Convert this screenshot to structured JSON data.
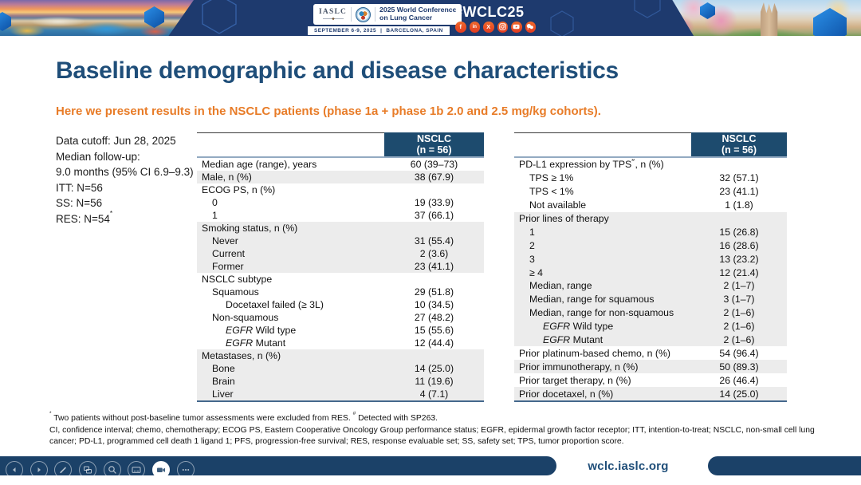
{
  "banner": {
    "logo": {
      "iaslc": "IASLC",
      "conference_line1": "2025 World Conference",
      "conference_line2": "on Lung Cancer",
      "dates": "SEPTEMBER 6-9, 2025",
      "separator": "|",
      "location": "BARCELONA, SPAIN"
    },
    "hashtag": "#WCLC25",
    "social_glyphs": {
      "facebook": "f",
      "linkedin": "in",
      "x": "X"
    },
    "social_icons": [
      "facebook",
      "linkedin",
      "x",
      "instagram",
      "youtube",
      "chat"
    ]
  },
  "slide": {
    "title": "Baseline demographic and disease characteristics",
    "subtitle": "Here we present results in the NSCLC patients (phase 1a + phase 1b 2.0 and 2.5 mg/kg cohorts).",
    "info_lines": [
      {
        "parts": [
          {
            "t": "Data cutoff: Jun 28, 2025"
          }
        ]
      },
      {
        "parts": [
          {
            "t": "Median follow-up:"
          }
        ]
      },
      {
        "parts": [
          {
            "t": "9.0 months (95% CI 6.9–9.3)"
          }
        ]
      },
      {
        "parts": [
          {
            "t": "ITT: N=56"
          }
        ]
      },
      {
        "parts": [
          {
            "t": "SS: N=56"
          }
        ]
      },
      {
        "parts": [
          {
            "t": "RES: N=54"
          },
          {
            "sup": "*"
          }
        ]
      }
    ]
  },
  "tables": {
    "left": {
      "header_line1": "NSCLC",
      "header_line2": "(n = 56)",
      "rows": [
        {
          "parts": [
            {
              "t": "Median age (range), years"
            }
          ],
          "value": "60 (39–73)",
          "indent": 0,
          "shaded": false
        },
        {
          "parts": [
            {
              "t": "Male, n (%)"
            }
          ],
          "value": "38 (67.9)",
          "indent": 0,
          "shaded": true
        },
        {
          "parts": [
            {
              "t": "ECOG PS, n (%)"
            }
          ],
          "value": "",
          "indent": 0,
          "shaded": false
        },
        {
          "parts": [
            {
              "t": "0"
            }
          ],
          "value": "19 (33.9)",
          "indent": 1,
          "shaded": false
        },
        {
          "parts": [
            {
              "t": "1"
            }
          ],
          "value": "37 (66.1)",
          "indent": 1,
          "shaded": false
        },
        {
          "parts": [
            {
              "t": "Smoking status, n (%)"
            }
          ],
          "value": "",
          "indent": 0,
          "shaded": true
        },
        {
          "parts": [
            {
              "t": "Never"
            }
          ],
          "value": "31 (55.4)",
          "indent": 1,
          "shaded": true
        },
        {
          "parts": [
            {
              "t": "Current"
            }
          ],
          "value": "2 (3.6)",
          "indent": 1,
          "shaded": true
        },
        {
          "parts": [
            {
              "t": "Former"
            }
          ],
          "value": "23 (41.1)",
          "indent": 1,
          "shaded": true
        },
        {
          "parts": [
            {
              "t": "NSCLC subtype"
            }
          ],
          "value": "",
          "indent": 0,
          "shaded": false
        },
        {
          "parts": [
            {
              "t": "Squamous"
            }
          ],
          "value": "29 (51.8)",
          "indent": 1,
          "shaded": false
        },
        {
          "parts": [
            {
              "t": "Docetaxel failed (≥ 3L)"
            }
          ],
          "value": "10 (34.5)",
          "indent": 2,
          "shaded": false
        },
        {
          "parts": [
            {
              "t": "Non-squamous"
            }
          ],
          "value": "27 (48.2)",
          "indent": 1,
          "shaded": false
        },
        {
          "parts": [
            {
              "em": "EGFR"
            },
            {
              "t": " Wild type"
            }
          ],
          "value": "15 (55.6)",
          "indent": 2,
          "shaded": false
        },
        {
          "parts": [
            {
              "em": "EGFR"
            },
            {
              "t": " Mutant"
            }
          ],
          "value": "12 (44.4)",
          "indent": 2,
          "shaded": false
        },
        {
          "parts": [
            {
              "t": "Metastases, n (%)"
            }
          ],
          "value": "",
          "indent": 0,
          "shaded": true
        },
        {
          "parts": [
            {
              "t": "Bone"
            }
          ],
          "value": "14 (25.0)",
          "indent": 1,
          "shaded": true
        },
        {
          "parts": [
            {
              "t": "Brain"
            }
          ],
          "value": "11 (19.6)",
          "indent": 1,
          "shaded": true
        },
        {
          "parts": [
            {
              "t": "Liver"
            }
          ],
          "value": "4 (7.1)",
          "indent": 1,
          "shaded": true
        }
      ]
    },
    "right": {
      "header_line1": "NSCLC",
      "header_line2": "(n = 56)",
      "rows": [
        {
          "parts": [
            {
              "t": "PD-L1 expression by TPS"
            },
            {
              "sup": "#"
            },
            {
              "t": ", n (%)"
            }
          ],
          "value": "",
          "indent": 0,
          "shaded": false
        },
        {
          "parts": [
            {
              "t": "TPS ≥ 1%"
            }
          ],
          "value": "32 (57.1)",
          "indent": 1,
          "shaded": false
        },
        {
          "parts": [
            {
              "t": "TPS < 1%"
            }
          ],
          "value": "23 (41.1)",
          "indent": 1,
          "shaded": false
        },
        {
          "parts": [
            {
              "t": "Not available"
            }
          ],
          "value": "1 (1.8)",
          "indent": 1,
          "shaded": false
        },
        {
          "parts": [
            {
              "t": "Prior lines of therapy"
            }
          ],
          "value": "",
          "indent": 0,
          "shaded": true
        },
        {
          "parts": [
            {
              "t": "1"
            }
          ],
          "value": "15 (26.8)",
          "indent": 1,
          "shaded": true
        },
        {
          "parts": [
            {
              "t": "2"
            }
          ],
          "value": "16 (28.6)",
          "indent": 1,
          "shaded": true
        },
        {
          "parts": [
            {
              "t": "3"
            }
          ],
          "value": "13 (23.2)",
          "indent": 1,
          "shaded": true
        },
        {
          "parts": [
            {
              "t": "≥ 4"
            }
          ],
          "value": "12 (21.4)",
          "indent": 1,
          "shaded": true
        },
        {
          "parts": [
            {
              "t": "Median, range"
            }
          ],
          "value": "2 (1–7)",
          "indent": 1,
          "shaded": true
        },
        {
          "parts": [
            {
              "t": "Median, range for squamous"
            }
          ],
          "value": "3 (1–7)",
          "indent": 1,
          "shaded": true
        },
        {
          "parts": [
            {
              "t": "Median, range for non-squamous"
            }
          ],
          "value": "2 (1–6)",
          "indent": 1,
          "shaded": true
        },
        {
          "parts": [
            {
              "em": "EGFR"
            },
            {
              "t": " Wild type"
            }
          ],
          "value": "2 (1–6)",
          "indent": 2,
          "shaded": true
        },
        {
          "parts": [
            {
              "em": "EGFR"
            },
            {
              "t": " Mutant"
            }
          ],
          "value": "2 (1–6)",
          "indent": 2,
          "shaded": true
        },
        {
          "parts": [
            {
              "t": "Prior platinum-based chemo, n (%)"
            }
          ],
          "value": "54 (96.4)",
          "indent": 0,
          "shaded": false
        },
        {
          "parts": [
            {
              "t": "Prior immunotherapy, n (%)"
            }
          ],
          "value": "50 (89.3)",
          "indent": 0,
          "shaded": true
        },
        {
          "parts": [
            {
              "t": "Prior target therapy, n (%)"
            }
          ],
          "value": "26 (46.4)",
          "indent": 0,
          "shaded": false
        },
        {
          "parts": [
            {
              "t": "Prior docetaxel, n (%)"
            }
          ],
          "value": "14 (25.0)",
          "indent": 0,
          "shaded": true
        }
      ]
    }
  },
  "footnotes": {
    "line1_parts": [
      {
        "sup": "*"
      },
      {
        "t": " Two patients without post-baseline tumor assessments were excluded from RES. "
      },
      {
        "sup": "#"
      },
      {
        "t": " Detected with SP263."
      }
    ],
    "abbreviations": "CI, confidence interval; chemo, chemotherapy; ECOG PS, Eastern Cooperative Oncology Group performance status; EGFR, epidermal growth factor receptor; ITT, intention-to-treat; NSCLC, non-small cell lung cancer; PD-L1, programmed cell death 1 ligand 1; PFS, progression-free survival; RES, response evaluable set; SS, safety set; TPS, tumor proportion score."
  },
  "footer": {
    "url": "wclc.iaslc.org",
    "toolbar_icons": [
      "previous-slide",
      "next-slide",
      "pen",
      "see-all-slides",
      "zoom",
      "subtitles",
      "camera",
      "more-options"
    ]
  },
  "colors": {
    "banner_navy": "#1e3a6e",
    "table_header_navy": "#1d4b6e",
    "title_navy": "#1f4e79",
    "subtitle_orange": "#e87c28",
    "social_orange": "#e8512b",
    "row_shade": "#ececec",
    "footer_navy": "#1b4168"
  }
}
